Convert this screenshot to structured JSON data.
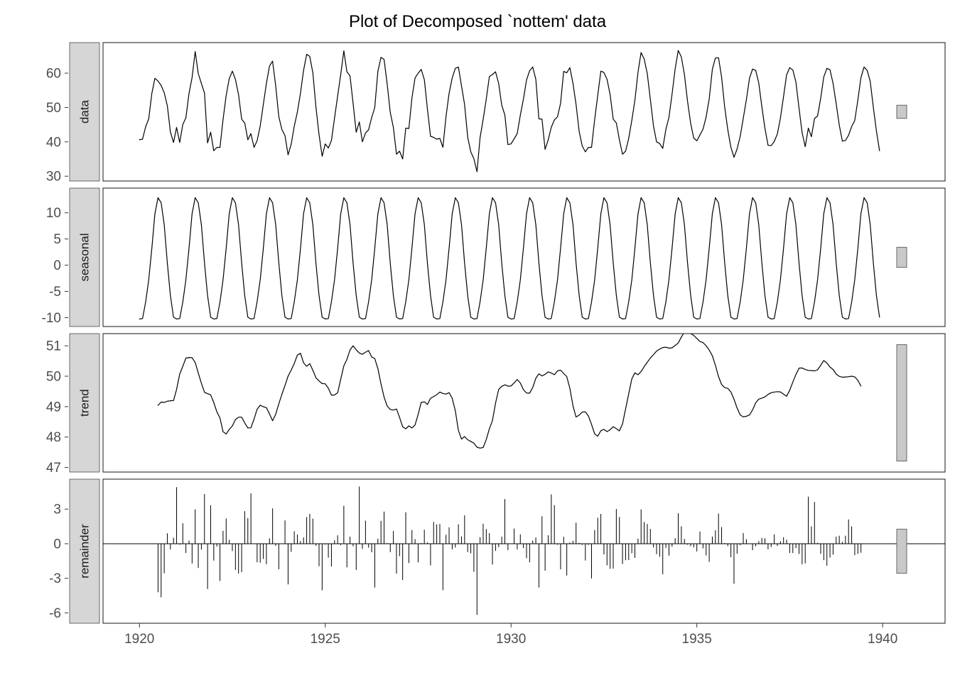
{
  "page": {
    "background": "#ffffff"
  },
  "chart_data": {
    "type": "line",
    "title": "Plot of Decomposed `nottem' data",
    "method": "classical additive decomposition of a monthly time series (trend = 12-month centered moving average, seasonal = repeated monthly pattern, remainder = data - trend - seasonal)",
    "x_start_year": 1920,
    "frequency": 12,
    "n_points": 240,
    "xlim": [
      1919.02,
      1941.68
    ],
    "x_ticks": [
      1920,
      1925,
      1930,
      1935,
      1940
    ],
    "legend": "none",
    "grid": "off",
    "style": {
      "line_color": "#000000",
      "strip_fill": "#d6d6d6",
      "strip_border": "#333333",
      "panel_border": "#2a2a2a",
      "tick_label_color": "#4d4d4d",
      "range_bar_fill": "#c9c9c9",
      "range_bar_border": "#666666"
    },
    "panels": [
      {
        "name": "data",
        "kind": "line",
        "y_ticks": [
          30,
          40,
          50,
          60
        ],
        "ylim": [
          28.6,
          68.9
        ]
      },
      {
        "name": "seasonal",
        "kind": "line",
        "y_ticks": [
          -10,
          -5,
          0,
          5,
          10
        ],
        "ylim": [
          -11.7,
          14.7
        ]
      },
      {
        "name": "trend",
        "kind": "line",
        "y_ticks": [
          47,
          48,
          49,
          50,
          51
        ],
        "ylim": [
          46.85,
          51.4
        ]
      },
      {
        "name": "remainder",
        "kind": "segments",
        "y_ticks": [
          -6,
          -3,
          0,
          3
        ],
        "ylim": [
          -6.9,
          5.6
        ]
      }
    ],
    "seasonal_pattern": [
      -10.27,
      -10.19,
      -7.0,
      -2.79,
      3.22,
      9.81,
      12.87,
      11.9,
      7.73,
      0.42,
      -5.79,
      -9.92
    ],
    "series_data": [
      40.6,
      40.8,
      44.4,
      46.7,
      54.1,
      58.5,
      57.7,
      56.4,
      54.3,
      50.5,
      42.9,
      39.8,
      44.2,
      39.8,
      45.1,
      47.0,
      54.1,
      58.7,
      66.3,
      59.9,
      57.0,
      54.2,
      39.7,
      42.8,
      37.4,
      38.4,
      38.4,
      46.5,
      53.5,
      58.4,
      60.6,
      58.2,
      53.8,
      46.6,
      45.5,
      40.6,
      42.4,
      38.4,
      40.3,
      44.6,
      50.9,
      57.0,
      62.1,
      63.5,
      56.3,
      47.3,
      43.6,
      41.8,
      36.2,
      39.3,
      44.5,
      48.7,
      54.2,
      60.8,
      65.5,
      64.9,
      60.1,
      50.2,
      42.1,
      35.8,
      39.4,
      38.2,
      40.4,
      46.9,
      53.4,
      59.6,
      66.5,
      60.4,
      59.2,
      51.2,
      42.8,
      45.8,
      40.0,
      42.6,
      43.5,
      47.1,
      50.0,
      60.5,
      64.6,
      64.0,
      56.8,
      48.6,
      44.2,
      36.4,
      37.3,
      35.0,
      44.0,
      43.9,
      52.7,
      58.6,
      60.0,
      61.1,
      58.1,
      49.6,
      41.6,
      41.3,
      40.8,
      41.0,
      38.4,
      47.4,
      54.1,
      58.6,
      61.4,
      61.8,
      56.3,
      50.9,
      41.4,
      37.1,
      35.1,
      31.3,
      41.2,
      46.6,
      52.4,
      59.0,
      59.6,
      60.4,
      57.0,
      50.7,
      47.8,
      39.2,
      39.4,
      40.9,
      42.4,
      47.8,
      52.4,
      58.0,
      60.7,
      61.8,
      58.2,
      46.7,
      46.6,
      37.8,
      40.6,
      44.2,
      46.4,
      47.3,
      51.2,
      60.5,
      60.1,
      61.6,
      57.0,
      50.9,
      43.0,
      38.8,
      37.1,
      38.4,
      38.4,
      46.5,
      53.5,
      60.6,
      60.2,
      58.2,
      53.8,
      46.6,
      45.5,
      40.6,
      36.4,
      37.3,
      41.0,
      46.3,
      52.1,
      60.3,
      66.0,
      64.1,
      59.9,
      52.3,
      44.6,
      40.0,
      39.5,
      38.1,
      43.6,
      47.1,
      53.9,
      61.3,
      66.6,
      64.7,
      59.6,
      51.8,
      45.4,
      41.1,
      40.3,
      42.0,
      43.7,
      47.2,
      52.5,
      61.1,
      64.4,
      64.5,
      58.9,
      50.1,
      43.6,
      38.4,
      35.5,
      37.9,
      41.6,
      46.8,
      52.3,
      58.5,
      61.2,
      60.8,
      57.2,
      50.2,
      44.0,
      39.0,
      38.9,
      40.1,
      42.3,
      46.9,
      53.2,
      59.5,
      61.6,
      60.9,
      57.4,
      49.8,
      42.7,
      38.6,
      44.0,
      41.5,
      46.8,
      47.5,
      52.7,
      58.9,
      61.4,
      61.0,
      57.0,
      51.1,
      44.9,
      40.2,
      40.4,
      41.9,
      44.5,
      46.2,
      52.2,
      58.7,
      61.8,
      60.8,
      57.6,
      50.0,
      43.2,
      37.4
    ]
  }
}
